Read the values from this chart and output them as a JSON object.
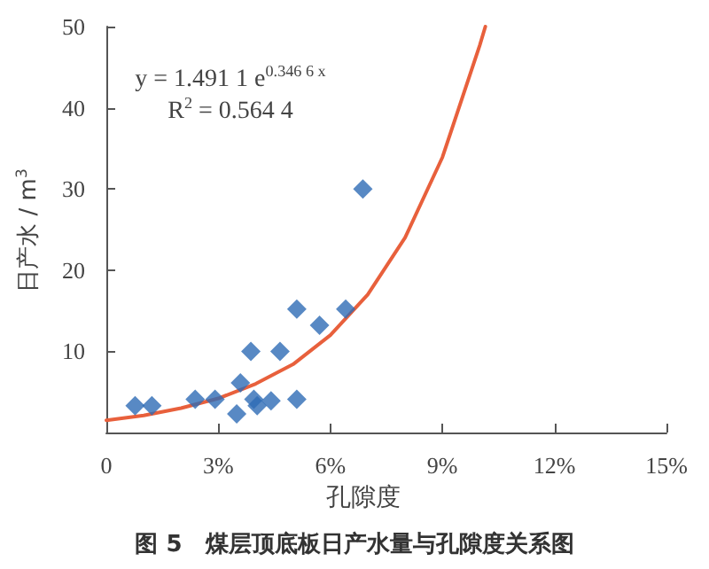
{
  "chart_data": {
    "type": "scatter",
    "title": "图 5　煤层顶底板日产水量与孔隙度关系图",
    "xlabel": "孔隙度",
    "ylabel": "日产水 / m$^{3}$",
    "annotations": [
      "y = 1.491 1 e$^{0.346 6 x}$",
      "R$^{2}$ = 0.564 4"
    ],
    "series": [
      {
        "color": "#2e6bb5",
        "marker": "diamond",
        "x": [
          0.77,
          1.22,
          2.38,
          2.91,
          3.49,
          3.59,
          3.87,
          3.95,
          4.04,
          4.41,
          4.65,
          5.1,
          5.1,
          5.71,
          6.41,
          6.87
        ],
        "values": [
          3.3,
          3.3,
          4.1,
          4.1,
          2.3,
          6.1,
          10.0,
          4.1,
          3.3,
          3.9,
          10.0,
          15.2,
          4.1,
          13.2,
          15.2,
          30.0
        ]
      },
      {
        "type": "line",
        "color": "#e8603c",
        "marker": "none",
        "line_style": "solid",
        "x": [
          0,
          1,
          2,
          3,
          4,
          5,
          6,
          7,
          8,
          9,
          10,
          10.15
        ],
        "values": [
          1.5,
          2.1,
          3.0,
          4.2,
          6.0,
          8.4,
          12.0,
          17.0,
          24.0,
          33.9,
          47.7,
          50
        ]
      }
    ],
    "xlim": [
      0,
      15
    ],
    "xticks": [
      {
        "value": 0,
        "label": "0"
      },
      {
        "value": 3,
        "label": "3%"
      },
      {
        "value": 6,
        "label": "6%"
      },
      {
        "value": 9,
        "label": "9%"
      },
      {
        "value": 12,
        "label": "12%"
      },
      {
        "value": 15,
        "label": "15%"
      }
    ],
    "ylim": [
      0,
      50
    ],
    "yticks": [
      {
        "value": 0,
        "label": null
      },
      10,
      20,
      30,
      40,
      50
    ],
    "grid": false
  }
}
